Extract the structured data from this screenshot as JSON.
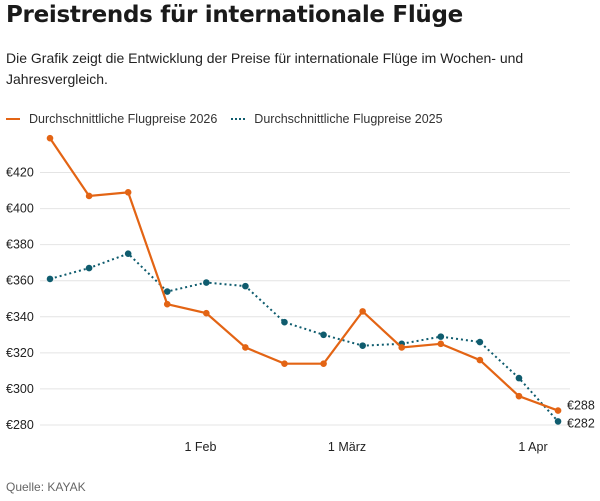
{
  "title": "Preistrends für internationale Flüge",
  "subtitle": "Die Grafik zeigt die Entwicklung der Preise für internationale Flüge im Wochen- und Jahresvergleich.",
  "source": "Quelle: KAYAK",
  "chart_data": {
    "type": "line",
    "title": "Preistrends für internationale Flüge",
    "x": [
      0,
      1,
      2,
      3,
      4,
      5,
      6,
      7,
      8,
      9,
      10,
      11,
      12,
      13
    ],
    "x_ticks": [
      {
        "label": "1 Feb",
        "at": 3.85
      },
      {
        "label": "1 März",
        "at": 7.6
      },
      {
        "label": "1 Apr",
        "at": 12.36
      }
    ],
    "y_ticks": [
      {
        "value": 280,
        "label": "€280"
      },
      {
        "value": 300,
        "label": "€300"
      },
      {
        "value": 320,
        "label": "€320"
      },
      {
        "value": 340,
        "label": "€340"
      },
      {
        "value": 360,
        "label": "€360"
      },
      {
        "value": 380,
        "label": "€380"
      },
      {
        "value": 400,
        "label": "€400"
      },
      {
        "value": 420,
        "label": "€420"
      }
    ],
    "ylim": [
      280,
      440
    ],
    "grid": true,
    "legend_placement": "top-left",
    "series": [
      {
        "name": "Durchschnittliche Flugpreise 2026",
        "color": "#e36414",
        "style": "solid",
        "values": [
          439,
          407,
          409,
          347,
          342,
          323,
          314,
          314,
          343,
          323,
          325,
          316,
          296,
          288
        ],
        "end_label": "€288"
      },
      {
        "name": "Durchschnittliche Flugpreise 2025",
        "color": "#0f5c6e",
        "style": "dotted",
        "values": [
          361,
          367,
          375,
          354,
          359,
          357,
          337,
          330,
          324,
          325,
          329,
          326,
          306,
          282
        ],
        "end_label": "€282"
      }
    ]
  }
}
